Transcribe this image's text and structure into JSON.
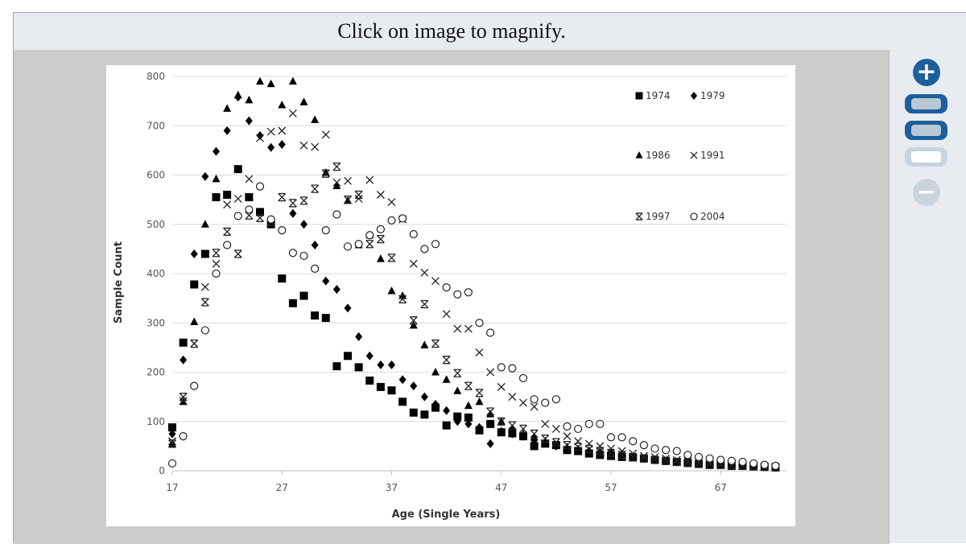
{
  "viewer": {
    "caption": "Click on image to magnify.",
    "controls": {
      "zoom_in": "+",
      "zoom_out": "−"
    }
  },
  "chart_data": {
    "type": "scatter",
    "title": "",
    "xlabel": "Age (Single Years)",
    "ylabel": "Sample Count",
    "xlim": [
      17,
      73
    ],
    "ylim": [
      0,
      800
    ],
    "x_ticks": [
      17,
      27,
      37,
      47,
      57,
      67
    ],
    "y_ticks": [
      0,
      100,
      200,
      300,
      400,
      500,
      600,
      700,
      800
    ],
    "grid": "horizontal",
    "legend_placement": "top-right",
    "series": [
      {
        "name": "1974",
        "marker": "square",
        "x": [
          17,
          18,
          19,
          20,
          21,
          22,
          23,
          24,
          25,
          26,
          27,
          28,
          29,
          30,
          31,
          32,
          33,
          34,
          35,
          36,
          37,
          38,
          39,
          40,
          41,
          42,
          43,
          44,
          45,
          46,
          47,
          48,
          49,
          50,
          51,
          52,
          53,
          54,
          55,
          56,
          57,
          58,
          59,
          60,
          61,
          62,
          63,
          64,
          65,
          66,
          67,
          68,
          69,
          70,
          71,
          72
        ],
        "y": [
          88,
          260,
          378,
          440,
          555,
          560,
          612,
          555,
          525,
          500,
          390,
          340,
          355,
          315,
          310,
          212,
          233,
          210,
          183,
          170,
          163,
          140,
          118,
          114,
          128,
          92,
          110,
          108,
          82,
          95,
          78,
          76,
          70,
          50,
          55,
          52,
          42,
          40,
          35,
          32,
          30,
          28,
          27,
          25,
          22,
          20,
          18,
          16,
          14,
          12,
          12,
          10,
          10,
          9,
          8,
          7
        ]
      },
      {
        "name": "1979",
        "marker": "diamond",
        "x": [
          17,
          18,
          19,
          20,
          21,
          22,
          23,
          24,
          25,
          26,
          27,
          28,
          29,
          30,
          31,
          32,
          33,
          34,
          35,
          36,
          37,
          38,
          39,
          40,
          41,
          42,
          43,
          44,
          45,
          46,
          47,
          48,
          49,
          50,
          51,
          52,
          53,
          54,
          55,
          56,
          57,
          58,
          59,
          60,
          61,
          62,
          63,
          64,
          65,
          66,
          67,
          68,
          69,
          70,
          71,
          72
        ],
        "y": [
          75,
          225,
          440,
          597,
          648,
          690,
          758,
          710,
          680,
          656,
          662,
          522,
          500,
          458,
          385,
          368,
          330,
          272,
          233,
          215,
          215,
          185,
          172,
          150,
          135,
          122,
          100,
          95,
          88,
          55,
          80,
          75,
          70,
          62,
          58,
          50,
          45,
          42,
          40,
          38,
          35,
          30,
          28,
          25,
          22,
          20,
          18,
          16,
          14,
          12,
          12,
          10,
          10,
          9,
          8,
          7
        ]
      },
      {
        "name": "1986",
        "marker": "triangle",
        "x": [
          17,
          18,
          19,
          20,
          21,
          22,
          23,
          24,
          25,
          26,
          27,
          28,
          29,
          30,
          31,
          32,
          33,
          34,
          35,
          36,
          37,
          38,
          39,
          40,
          41,
          42,
          43,
          44,
          45,
          46,
          47,
          48,
          49,
          50,
          51,
          52,
          53,
          54,
          55,
          56,
          57,
          58,
          59,
          60,
          61,
          62,
          63,
          64,
          65,
          66,
          67,
          68,
          69,
          70,
          71,
          72
        ],
        "y": [
          55,
          140,
          302,
          500,
          592,
          735,
          762,
          752,
          790,
          785,
          742,
          790,
          748,
          712,
          605,
          578,
          548,
          458,
          478,
          430,
          365,
          355,
          295,
          255,
          200,
          185,
          162,
          132,
          140,
          115,
          100,
          85,
          75,
          68,
          60,
          52,
          48,
          44,
          40,
          36,
          33,
          30,
          27,
          24,
          22,
          20,
          18,
          16,
          14,
          12,
          12,
          10,
          10,
          9,
          8,
          7
        ]
      },
      {
        "name": "1991",
        "marker": "x",
        "x": [
          17,
          18,
          19,
          20,
          21,
          22,
          23,
          24,
          25,
          26,
          27,
          28,
          29,
          30,
          31,
          32,
          33,
          34,
          35,
          36,
          37,
          38,
          39,
          40,
          41,
          42,
          43,
          44,
          45,
          46,
          47,
          48,
          49,
          50,
          51,
          52,
          53,
          54,
          55,
          56,
          57,
          58,
          59,
          60,
          61,
          62,
          63,
          64,
          65,
          66,
          67,
          68,
          69,
          70,
          71,
          72
        ],
        "y": [
          60,
          142,
          258,
          373,
          420,
          540,
          552,
          592,
          675,
          688,
          690,
          725,
          660,
          657,
          682,
          585,
          588,
          552,
          590,
          560,
          545,
          510,
          420,
          402,
          385,
          318,
          288,
          288,
          240,
          200,
          170,
          150,
          138,
          130,
          95,
          85,
          70,
          60,
          55,
          50,
          45,
          40,
          35,
          30,
          28,
          25,
          22,
          20,
          18,
          16,
          14,
          12,
          11,
          10,
          9,
          8
        ]
      },
      {
        "name": "1997",
        "marker": "asterisk",
        "x": [
          17,
          18,
          19,
          20,
          21,
          22,
          23,
          24,
          25,
          26,
          27,
          28,
          29,
          30,
          31,
          32,
          33,
          34,
          35,
          36,
          37,
          38,
          39,
          40,
          41,
          42,
          43,
          44,
          45,
          46,
          47,
          48,
          49,
          50,
          51,
          52,
          53,
          54,
          55,
          56,
          57,
          58,
          59,
          60,
          61,
          62,
          63,
          64,
          65,
          66,
          67,
          68,
          69,
          70,
          71,
          72
        ],
        "y": [
          55,
          150,
          258,
          342,
          442,
          485,
          440,
          518,
          513,
          505,
          555,
          543,
          548,
          572,
          603,
          617,
          550,
          560,
          460,
          470,
          432,
          348,
          305,
          338,
          258,
          225,
          198,
          172,
          158,
          120,
          100,
          92,
          85,
          75,
          65,
          58,
          52,
          48,
          44,
          40,
          36,
          32,
          28,
          25,
          22,
          20,
          18,
          16,
          14,
          12,
          12,
          10,
          10,
          9,
          8,
          7
        ]
      },
      {
        "name": "2004",
        "marker": "circle",
        "x": [
          17,
          18,
          19,
          20,
          21,
          22,
          23,
          24,
          25,
          26,
          27,
          28,
          29,
          30,
          31,
          32,
          33,
          34,
          35,
          36,
          37,
          38,
          39,
          40,
          41,
          42,
          43,
          44,
          45,
          46,
          47,
          48,
          49,
          50,
          51,
          52,
          53,
          54,
          55,
          56,
          57,
          58,
          59,
          60,
          61,
          62,
          63,
          64,
          65,
          66,
          67,
          68,
          69,
          70,
          71,
          72
        ],
        "y": [
          15,
          70,
          172,
          285,
          400,
          458,
          517,
          530,
          577,
          510,
          488,
          442,
          436,
          410,
          488,
          520,
          455,
          460,
          478,
          490,
          508,
          512,
          480,
          450,
          460,
          372,
          358,
          362,
          300,
          280,
          210,
          208,
          188,
          145,
          138,
          145,
          90,
          85,
          95,
          95,
          68,
          68,
          60,
          52,
          45,
          42,
          40,
          32,
          28,
          25,
          22,
          20,
          18,
          15,
          12,
          10
        ]
      }
    ]
  }
}
